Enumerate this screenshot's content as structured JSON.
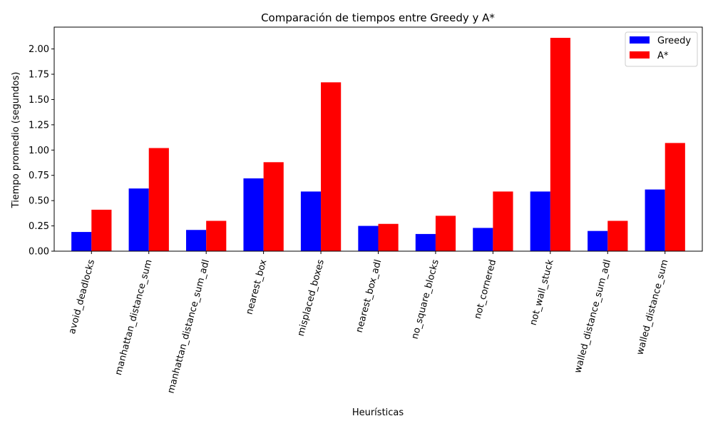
{
  "chart_data": {
    "type": "bar",
    "title": "Comparación de tiempos entre Greedy y A*",
    "xlabel": "Heurísticas",
    "ylabel": "Tiempo promedio (segundos)",
    "categories": [
      "avoid_deadlocks",
      "manhattan_distance_sum",
      "manhattan_distance_sum_adl",
      "nearest_box",
      "misplaced_boxes",
      "nearest_box_adl",
      "no_square_blocks",
      "not_cornered",
      "not_wall_stuck",
      "walled_distance_sum_adl",
      "walled_distance_sum"
    ],
    "series": [
      {
        "name": "Greedy",
        "color": "#0000ff",
        "values": [
          0.19,
          0.62,
          0.21,
          0.72,
          0.59,
          0.25,
          0.17,
          0.23,
          0.59,
          0.2,
          0.61
        ]
      },
      {
        "name": "A*",
        "color": "#ff0000",
        "values": [
          0.41,
          1.02,
          0.3,
          0.88,
          1.67,
          0.27,
          0.35,
          0.59,
          2.11,
          0.3,
          1.07
        ]
      }
    ],
    "ylim": [
      0,
      2.216
    ],
    "yticks": [
      "0.00",
      "0.25",
      "0.50",
      "0.75",
      "1.00",
      "1.25",
      "1.50",
      "1.75",
      "2.00"
    ],
    "xtick_rotation": 75,
    "legend_position": "top-right",
    "grid": false
  }
}
